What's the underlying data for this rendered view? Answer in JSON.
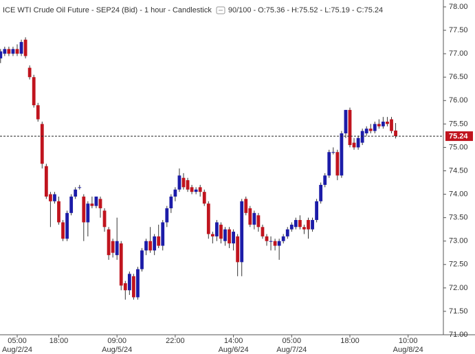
{
  "chart_data": {
    "type": "candlestick",
    "title": "ICE WTI Crude Oil Future - SEP24 (Bid) - 1 hour - Candlestick",
    "zoom": "90/100",
    "ohlc_labels": [
      "O:",
      "H:",
      "L:",
      "C:"
    ],
    "up_color": "#1c1ca8",
    "down_color": "#c0141e",
    "grid": false,
    "categories": [
      null,
      null,
      null,
      null,
      "05:00",
      null,
      null,
      null,
      null,
      null,
      null,
      null,
      null,
      null,
      "18:00",
      null,
      null,
      null,
      null,
      null,
      null,
      null,
      null,
      null,
      null,
      null,
      null,
      null,
      "09:00",
      null,
      null,
      null,
      null,
      null,
      null,
      null,
      null,
      null,
      null,
      null,
      null,
      null,
      "22:00",
      null,
      null,
      null,
      null,
      null,
      null,
      null,
      null,
      null,
      null,
      null,
      null,
      null,
      "14:00",
      null,
      null,
      null,
      null,
      null,
      null,
      null,
      null,
      null,
      null,
      null,
      null,
      null,
      "05:00",
      null,
      null,
      null,
      null,
      null,
      null,
      null,
      null,
      null,
      null,
      null,
      null,
      null,
      "18:00",
      null,
      null,
      null,
      null,
      null,
      null,
      null,
      null,
      null,
      null,
      null,
      null,
      null,
      "10:00",
      null,
      null,
      null,
      null,
      null,
      null,
      null
    ],
    "dates": [
      null,
      null,
      null,
      null,
      "Aug/2/24",
      null,
      null,
      null,
      null,
      null,
      null,
      null,
      null,
      null,
      null,
      null,
      null,
      null,
      null,
      null,
      null,
      null,
      null,
      null,
      null,
      null,
      null,
      null,
      "Aug/5/24",
      null,
      null,
      null,
      null,
      null,
      null,
      null,
      null,
      null,
      null,
      null,
      null,
      null,
      null,
      null,
      null,
      null,
      null,
      null,
      null,
      null,
      null,
      null,
      null,
      null,
      null,
      null,
      "Aug/6/24",
      null,
      null,
      null,
      null,
      null,
      null,
      null,
      null,
      null,
      null,
      null,
      null,
      null,
      "Aug/7/24",
      null,
      null,
      null,
      null,
      null,
      null,
      null,
      null,
      null,
      null,
      null,
      null,
      null,
      null,
      null,
      null,
      null,
      null,
      null,
      null,
      null,
      null,
      null,
      null,
      null,
      null,
      null,
      "Aug/8/24",
      null,
      null,
      null,
      null,
      null,
      null,
      null
    ],
    "open": [
      76.9,
      77.0,
      77.1,
      77.0,
      77.1,
      77.0,
      77.3,
      76.7,
      76.5,
      75.9,
      75.5,
      74.6,
      74.0,
      73.85,
      73.85,
      73.4,
      73.05,
      73.6,
      73.95,
      74.15,
      73.95,
      73.4,
      73.8,
      73.75,
      73.9,
      73.65,
      73.25,
      73.0,
      72.7,
      72.95,
      72.1,
      71.95,
      72.25,
      71.8,
      72.4,
      72.8,
      73.0,
      72.8,
      73.1,
      72.9,
      73.4,
      73.7,
      73.95,
      74.1,
      74.35,
      74.3,
      74.15,
      74.05,
      74.15,
      74.05,
      73.8,
      73.15,
      73.1,
      73.35,
      73.0,
      73.25,
      72.95,
      73.1,
      72.55,
      73.9,
      73.7,
      73.35,
      73.55,
      73.3,
      73.1,
      73.0,
      73.0,
      72.9,
      73.0,
      73.1,
      73.25,
      73.3,
      73.45,
      73.3,
      73.45,
      73.25,
      73.45,
      73.85,
      74.2,
      74.4,
      74.9,
      74.9,
      74.4,
      75.3,
      75.8,
      75.1,
      75.0,
      75.1,
      75.3,
      75.4,
      75.35,
      75.5,
      75.45,
      75.55,
      75.6,
      75.36,
      null,
      null,
      null,
      null,
      null,
      null,
      null,
      null,
      null,
      null
    ],
    "high": [
      77.1,
      77.15,
      77.15,
      77.15,
      77.2,
      77.3,
      77.35,
      76.75,
      76.55,
      75.95,
      75.55,
      74.65,
      74.05,
      74.05,
      73.95,
      73.45,
      73.65,
      74.0,
      74.15,
      74.2,
      74.0,
      73.85,
      73.95,
      73.95,
      73.95,
      73.7,
      73.3,
      73.05,
      73.5,
      73.0,
      72.15,
      72.35,
      72.3,
      72.45,
      72.85,
      73.05,
      73.3,
      73.15,
      73.35,
      73.45,
      73.75,
      74.0,
      74.15,
      74.55,
      74.45,
      74.35,
      74.2,
      74.15,
      74.2,
      74.1,
      73.85,
      73.2,
      73.45,
      73.4,
      73.3,
      73.3,
      73.25,
      73.15,
      73.9,
      73.95,
      73.75,
      73.65,
      73.6,
      73.35,
      73.15,
      73.1,
      73.05,
      73.05,
      73.15,
      73.3,
      73.4,
      73.5,
      73.55,
      73.35,
      73.5,
      73.5,
      73.9,
      74.25,
      74.45,
      74.95,
      75.0,
      74.95,
      75.35,
      75.8,
      75.85,
      75.2,
      75.25,
      75.4,
      75.45,
      75.5,
      75.55,
      75.6,
      75.65,
      75.65,
      75.65,
      75.52,
      null,
      null,
      null,
      null,
      null,
      null,
      null,
      null,
      null,
      null
    ],
    "low": [
      76.8,
      76.95,
      76.95,
      76.95,
      76.95,
      76.95,
      76.9,
      76.45,
      75.85,
      75.55,
      74.55,
      73.9,
      73.3,
      73.8,
      73.35,
      73.0,
      73.0,
      73.55,
      73.9,
      74.1,
      73.0,
      73.1,
      73.7,
      73.7,
      73.5,
      73.2,
      72.6,
      72.65,
      72.6,
      71.95,
      71.75,
      71.85,
      71.75,
      71.75,
      72.35,
      72.7,
      72.75,
      72.7,
      72.85,
      72.8,
      73.3,
      73.6,
      73.85,
      74.05,
      74.1,
      74.05,
      74.0,
      74.0,
      73.95,
      73.75,
      73.05,
      72.95,
      73.0,
      72.95,
      72.9,
      72.85,
      72.8,
      72.25,
      72.25,
      73.55,
      73.3,
      73.25,
      73.2,
      73.05,
      72.9,
      72.8,
      72.8,
      72.6,
      72.95,
      73.05,
      73.2,
      73.25,
      73.25,
      73.15,
      73.05,
      73.2,
      73.4,
      73.8,
      74.15,
      74.35,
      74.85,
      74.3,
      74.35,
      75.2,
      75.0,
      74.95,
      74.95,
      75.05,
      75.25,
      75.3,
      75.3,
      75.4,
      75.4,
      75.45,
      75.3,
      75.19,
      null,
      null,
      null,
      null,
      null,
      null,
      null,
      null,
      null,
      null
    ],
    "close": [
      77.05,
      77.1,
      77.0,
      77.1,
      77.0,
      77.25,
      76.95,
      76.5,
      75.9,
      75.6,
      74.65,
      73.95,
      73.85,
      74.0,
      73.4,
      73.05,
      73.6,
      73.95,
      74.1,
      74.15,
      73.4,
      73.8,
      73.75,
      73.95,
      73.7,
      73.3,
      72.7,
      72.75,
      73.0,
      72.05,
      71.95,
      72.3,
      71.8,
      72.4,
      72.8,
      73.0,
      72.8,
      73.1,
      72.9,
      73.4,
      73.7,
      73.95,
      74.1,
      74.4,
      74.15,
      74.1,
      74.05,
      74.1,
      74.05,
      73.8,
      73.15,
      73.1,
      73.4,
      73.05,
      73.25,
      72.95,
      73.2,
      72.55,
      73.85,
      73.6,
      73.35,
      73.6,
      73.3,
      73.1,
      73.0,
      73.0,
      72.9,
      73.0,
      73.1,
      73.25,
      73.35,
      73.45,
      73.3,
      73.25,
      73.25,
      73.45,
      73.85,
      74.2,
      74.4,
      74.9,
      74.9,
      74.4,
      75.3,
      75.8,
      75.05,
      75.0,
      75.2,
      75.35,
      75.4,
      75.35,
      75.5,
      75.45,
      75.55,
      75.5,
      75.35,
      75.24,
      null,
      null,
      null,
      null,
      null,
      null,
      null,
      null,
      null,
      null
    ],
    "ylim": [
      71,
      78
    ],
    "yticks": [
      {
        "value": 78,
        "label": "78.00"
      },
      {
        "value": 77.5,
        "label": "77.50"
      },
      {
        "value": 77,
        "label": "77.00"
      },
      {
        "value": 76.5,
        "label": "76.50"
      },
      {
        "value": 76,
        "label": "76.00"
      },
      {
        "value": 75.5,
        "label": "75.50"
      },
      {
        "value": 75,
        "label": "75.00"
      },
      {
        "value": 74.5,
        "label": "74.50"
      },
      {
        "value": 74,
        "label": "74.00"
      },
      {
        "value": 73.5,
        "label": "73.50"
      },
      {
        "value": 73,
        "label": "73.00"
      },
      {
        "value": 72.5,
        "label": "72.50"
      },
      {
        "value": 72,
        "label": "72.00"
      },
      {
        "value": 71.5,
        "label": "71.50"
      },
      {
        "value": 71,
        "label": "71.00"
      }
    ]
  }
}
